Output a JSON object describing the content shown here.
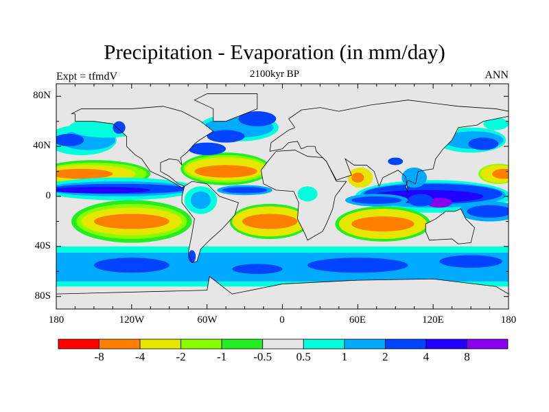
{
  "title": "Precipitation - Evaporation (in mm/day)",
  "subtitle": "2100kyr BP",
  "left_label": "Expt = tfmdV",
  "right_label": "ANN",
  "lat_labels": [
    "80N",
    "40N",
    "0",
    "40S",
    "80S"
  ],
  "lon_labels": [
    "180",
    "120W",
    "60W",
    "0",
    "60E",
    "120E",
    "180"
  ],
  "colorbar": {
    "labels": [
      "-8",
      "-4",
      "-2",
      "-1",
      "-0.5",
      "0.5",
      "1",
      "2",
      "4",
      "8"
    ],
    "colors": [
      "#ff0000",
      "#ff8000",
      "#e6e600",
      "#88ff00",
      "#22ee22",
      "#e6e6e6",
      "#00ffdd",
      "#00aaff",
      "#0044ff",
      "#2200ff",
      "#8800ee"
    ]
  },
  "chart_data": {
    "type": "heatmap",
    "title": "Precipitation - Evaporation (in mm/day)",
    "subtitle": "2100kyr BP",
    "projection": "cylindrical equidistant",
    "xlim": [
      -180,
      180
    ],
    "ylim": [
      -90,
      90
    ],
    "contour_levels": [
      -8,
      -4,
      -2,
      -1,
      -0.5,
      0.5,
      1,
      2,
      4,
      8
    ],
    "legend": "bottom horizontal colorbar"
  }
}
